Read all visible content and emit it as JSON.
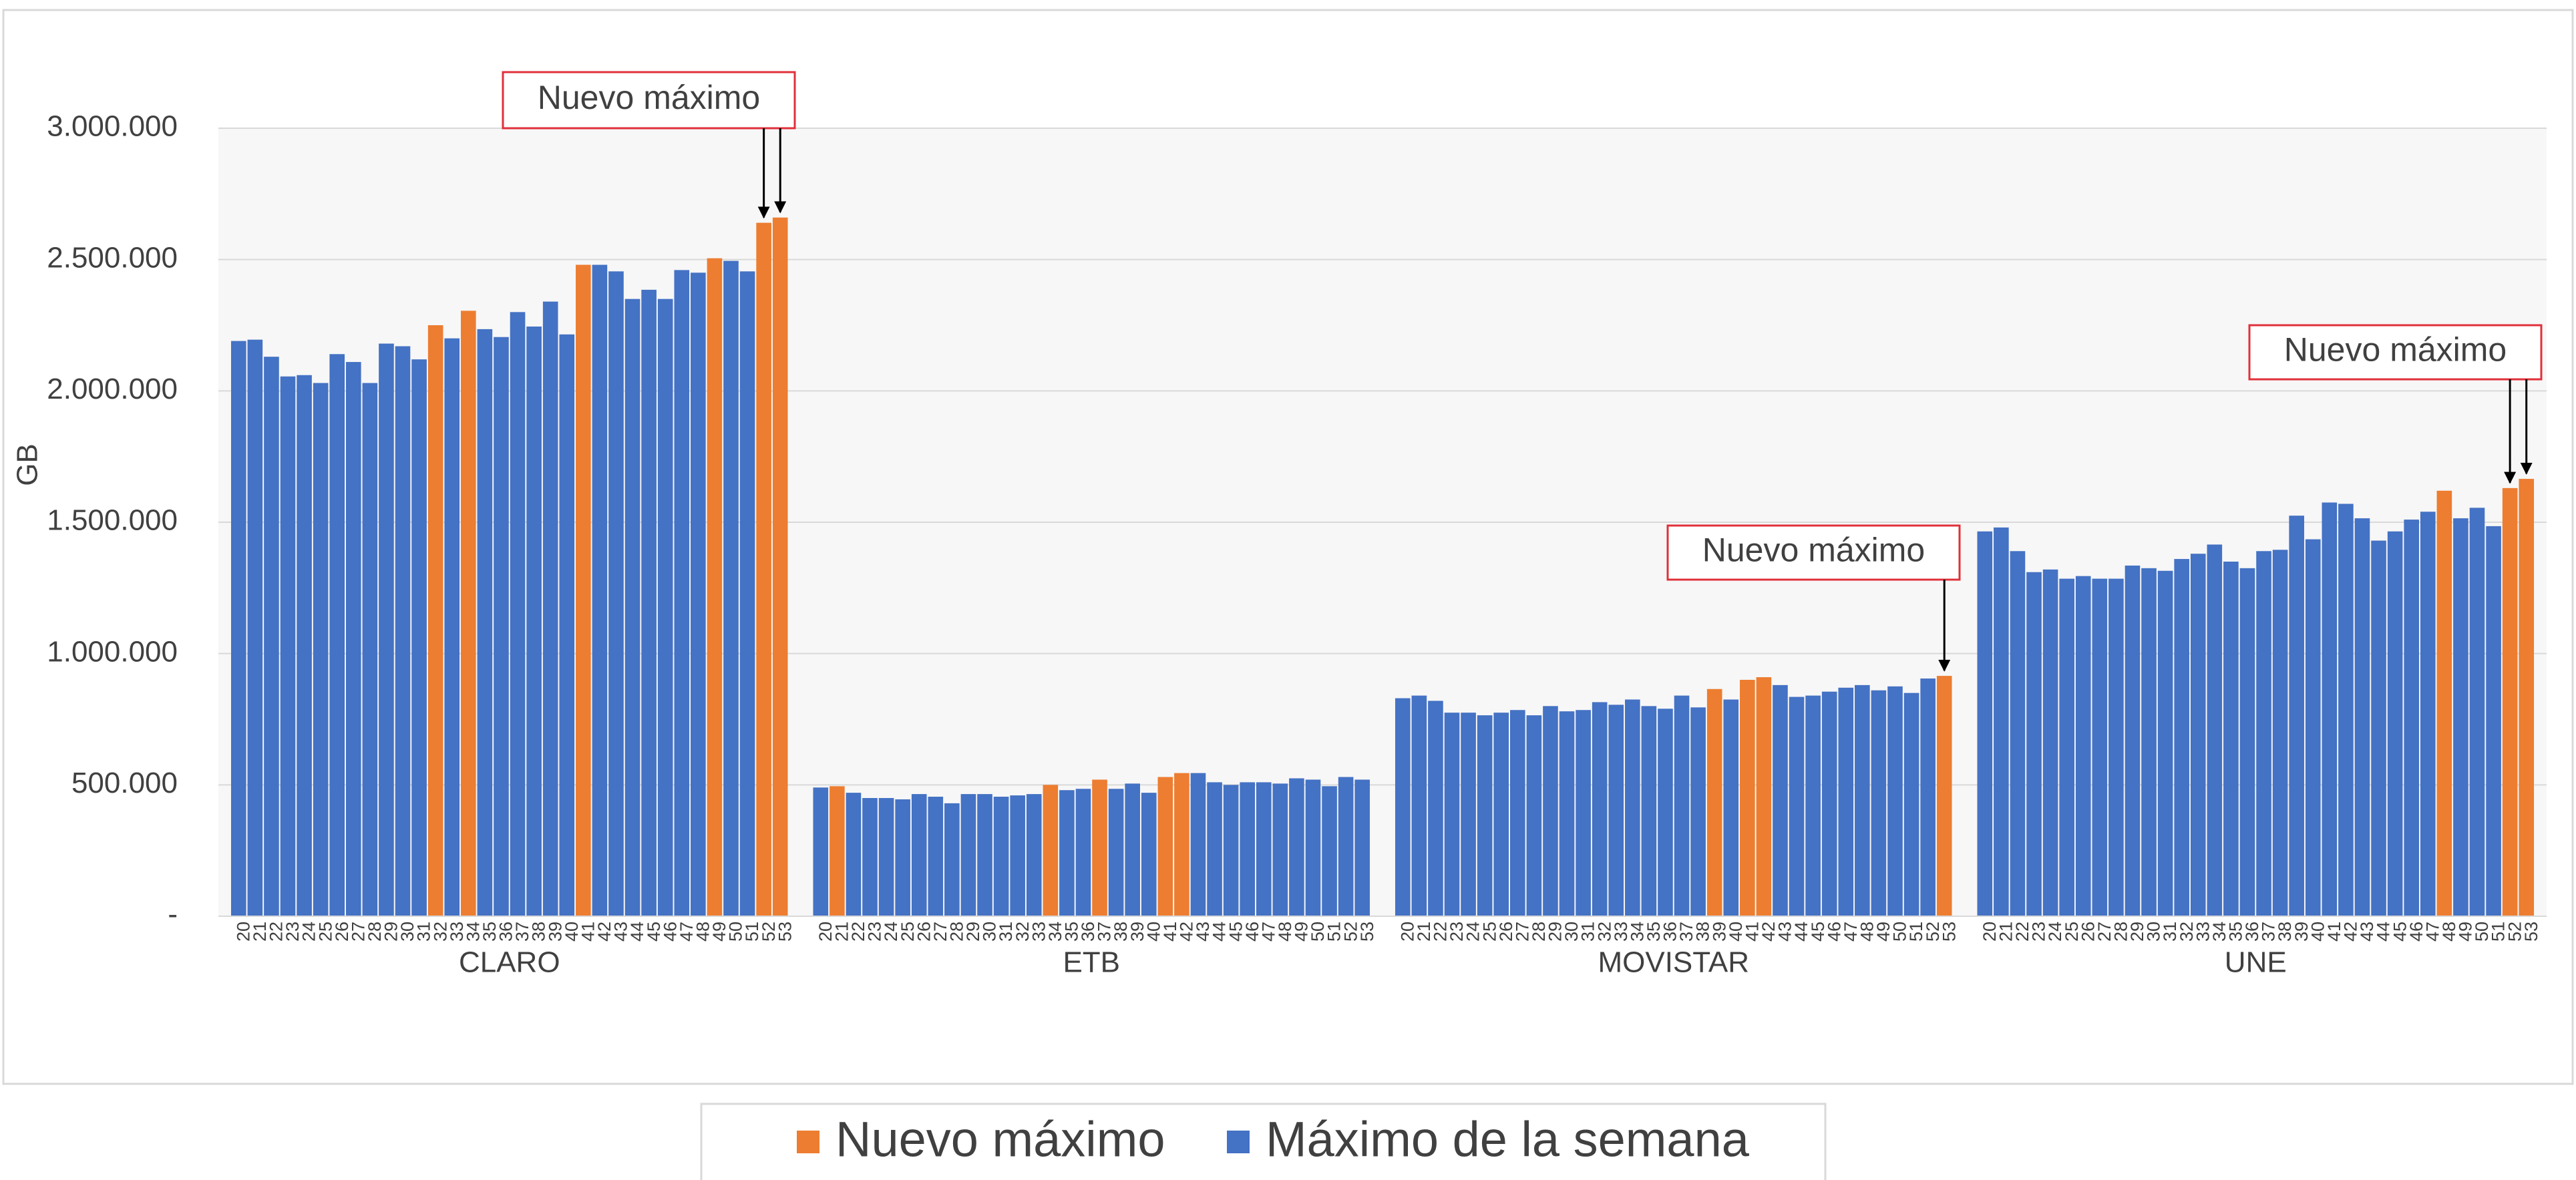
{
  "chart_data": {
    "type": "grouped-bar",
    "y_label": "GB",
    "groups": [
      "CLARO",
      "ETB",
      "MOVISTAR",
      "UNE"
    ],
    "categories": [
      "20",
      "21",
      "22",
      "23",
      "24",
      "25",
      "26",
      "27",
      "28",
      "29",
      "30",
      "31",
      "32",
      "33",
      "34",
      "35",
      "36",
      "37",
      "38",
      "39",
      "40",
      "41",
      "42",
      "43",
      "44",
      "45",
      "46",
      "47",
      "48",
      "49",
      "50",
      "51",
      "52",
      "53",
      "20",
      "21",
      "22",
      "23",
      "24",
      "25",
      "26",
      "27",
      "28",
      "29",
      "30",
      "31",
      "32",
      "33",
      "34",
      "35",
      "36",
      "37",
      "38",
      "39",
      "40",
      "41",
      "42",
      "43",
      "44",
      "45",
      "46",
      "47",
      "48",
      "49",
      "50",
      "51",
      "52",
      "53",
      "20",
      "21",
      "22",
      "23",
      "24",
      "25",
      "26",
      "27",
      "28",
      "29",
      "30",
      "31",
      "32",
      "33",
      "34",
      "35",
      "36",
      "37",
      "38",
      "39",
      "40",
      "41",
      "42",
      "43",
      "44",
      "45",
      "46",
      "47",
      "48",
      "49",
      "50",
      "51",
      "52",
      "53",
      "20",
      "21",
      "22",
      "23",
      "24",
      "25",
      "26",
      "27",
      "28",
      "29",
      "30",
      "31",
      "32",
      "33",
      "34",
      "35",
      "36",
      "37",
      "38",
      "39",
      "40",
      "41",
      "42",
      "43",
      "44",
      "45",
      "46",
      "47",
      "48",
      "49",
      "50",
      "51",
      "52",
      "53"
    ],
    "series": [
      {
        "name": "Nuevo máximo",
        "color": "#ed7d31",
        "values": [
          null,
          null,
          null,
          null,
          null,
          null,
          null,
          null,
          null,
          null,
          null,
          null,
          2250000,
          null,
          2305000,
          null,
          null,
          null,
          null,
          null,
          null,
          2480000,
          null,
          null,
          null,
          null,
          null,
          null,
          null,
          2505000,
          null,
          null,
          2640000,
          2660000,
          null,
          495000,
          null,
          null,
          null,
          null,
          null,
          null,
          null,
          null,
          null,
          null,
          null,
          null,
          500000,
          null,
          null,
          520000,
          null,
          null,
          null,
          530000,
          545000,
          null,
          null,
          null,
          null,
          null,
          null,
          null,
          null,
          null,
          null,
          null,
          null,
          null,
          null,
          null,
          null,
          null,
          null,
          null,
          null,
          null,
          null,
          null,
          null,
          null,
          null,
          null,
          null,
          null,
          null,
          865000,
          null,
          900000,
          910000,
          null,
          null,
          null,
          null,
          null,
          null,
          null,
          null,
          null,
          null,
          915000,
          null,
          null,
          null,
          null,
          null,
          null,
          null,
          null,
          null,
          null,
          null,
          null,
          null,
          null,
          null,
          null,
          null,
          null,
          null,
          null,
          null,
          null,
          null,
          null,
          null,
          null,
          null,
          null,
          1620000,
          null,
          null,
          null,
          1630000,
          1665000
        ]
      },
      {
        "name": "Máximo de la semana",
        "color": "#4472c4",
        "values": [
          2190000,
          2195000,
          2130000,
          2055000,
          2060000,
          2030000,
          2140000,
          2110000,
          2030000,
          2180000,
          2170000,
          2120000,
          null,
          2200000,
          null,
          2235000,
          2205000,
          2300000,
          2245000,
          2340000,
          2215000,
          null,
          2480000,
          2455000,
          2350000,
          2385000,
          2350000,
          2460000,
          2450000,
          null,
          2495000,
          2455000,
          null,
          null,
          490000,
          null,
          470000,
          450000,
          450000,
          445000,
          465000,
          455000,
          430000,
          465000,
          465000,
          455000,
          460000,
          465000,
          null,
          480000,
          485000,
          null,
          485000,
          505000,
          470000,
          null,
          null,
          545000,
          510000,
          500000,
          510000,
          510000,
          505000,
          525000,
          520000,
          495000,
          530000,
          520000,
          830000,
          840000,
          820000,
          775000,
          775000,
          765000,
          775000,
          785000,
          765000,
          800000,
          780000,
          785000,
          815000,
          805000,
          825000,
          800000,
          790000,
          840000,
          795000,
          null,
          825000,
          null,
          null,
          880000,
          835000,
          840000,
          855000,
          870000,
          880000,
          860000,
          875000,
          850000,
          905000,
          null,
          1465000,
          1480000,
          1390000,
          1310000,
          1320000,
          1285000,
          1295000,
          1285000,
          1285000,
          1335000,
          1325000,
          1315000,
          1360000,
          1380000,
          1415000,
          1350000,
          1325000,
          1390000,
          1395000,
          1525000,
          1435000,
          1575000,
          1570000,
          1515000,
          1430000,
          1465000,
          1510000,
          1540000,
          null,
          1515000,
          1555000,
          1485000,
          null,
          null
        ]
      }
    ],
    "ylim": [
      0,
      3000000
    ],
    "yticks": [
      {
        "value": 0,
        "label": "-"
      },
      {
        "value": 500000,
        "label": "500.000"
      },
      {
        "value": 1000000,
        "label": "1.000.000"
      },
      {
        "value": 1500000,
        "label": "1.500.000"
      },
      {
        "value": 2000000,
        "label": "2.000.000"
      },
      {
        "value": 2500000,
        "label": "2.500.000"
      },
      {
        "value": 3000000,
        "label": "3.000.000"
      }
    ],
    "grid": true,
    "legend": "bottom",
    "annotations": [
      {
        "text": "Nuevo máximo"
      },
      {
        "text": "Nuevo máximo"
      },
      {
        "text": "Nuevo máximo"
      }
    ]
  }
}
